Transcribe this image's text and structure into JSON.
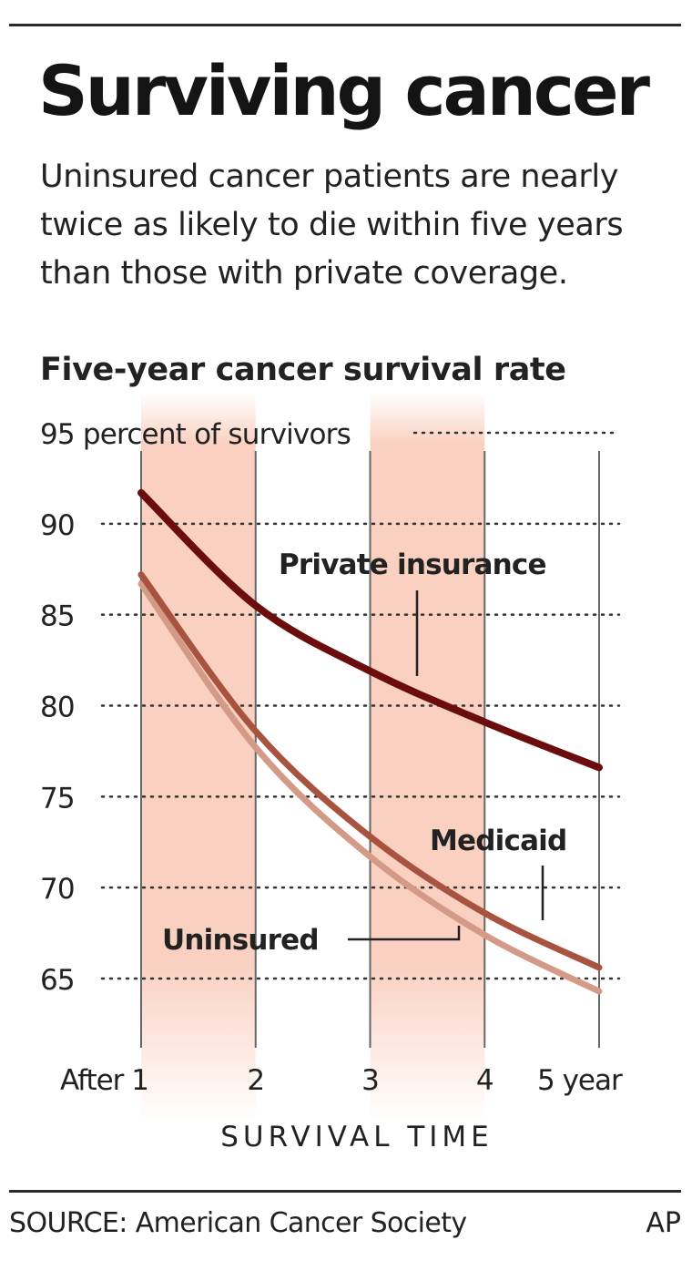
{
  "header": {
    "title": "Surviving cancer",
    "subtitle": "Uninsured cancer patients are nearly twice as likely to die within five years than those with private coverage.",
    "chart_heading": "Five-year cancer survival rate"
  },
  "footer": {
    "source": "SOURCE: American Cancer Society",
    "credit": "AP"
  },
  "colors": {
    "private_insurance": "#6b0d0d",
    "medicaid": "#a85240",
    "uninsured": "#d49a88",
    "band": "#fad0c0",
    "grid": "#333333",
    "text": "#222222"
  },
  "chart_data": {
    "type": "line",
    "xlabel": "SURVIVAL TIME",
    "ylabel": "",
    "x": [
      1,
      2,
      3,
      4,
      5
    ],
    "x_tick_labels": [
      "After 1",
      "2",
      "3",
      "4",
      "5 year"
    ],
    "y_ticks": [
      95,
      90,
      85,
      80,
      75,
      70,
      65
    ],
    "y_tick_labels": [
      "95 percent of survivors",
      "90",
      "85",
      "80",
      "75",
      "70",
      "65"
    ],
    "ylim": [
      61.5,
      95
    ],
    "xlim": [
      1,
      5
    ],
    "grid": "dotted horizontal lines, solid vertical lines",
    "shaded_intervals": [
      [
        1,
        2
      ],
      [
        3,
        4
      ]
    ],
    "series": [
      {
        "name": "Private insurance",
        "values": [
          91.7,
          85.5,
          81.9,
          79.1,
          76.6
        ]
      },
      {
        "name": "Medicaid",
        "values": [
          87.2,
          78.6,
          72.8,
          68.6,
          65.6
        ]
      },
      {
        "name": "Uninsured",
        "values": [
          86.7,
          77.7,
          71.7,
          67.4,
          64.3
        ]
      }
    ]
  }
}
